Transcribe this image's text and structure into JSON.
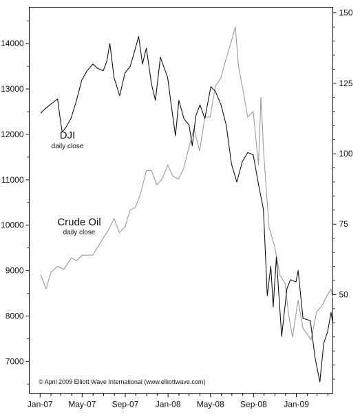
{
  "chart_data": {
    "type": "line",
    "title": "",
    "copyright": "© April 2009 Elliott Wave International (www.elliottwave.com)",
    "x_ticks": [
      "Jan-07",
      "May-07",
      "Sep-07",
      "Jan-08",
      "May-08",
      "Sep-08",
      "Jan-09"
    ],
    "x_ticks_dates": [
      "2007-01-01",
      "2007-05-01",
      "2007-09-01",
      "2008-01-01",
      "2008-05-01",
      "2008-09-01",
      "2009-01-01"
    ],
    "x_range": [
      "2006-12-01",
      "2009-04-15"
    ],
    "y_left": {
      "min": 6300,
      "max": 14800,
      "ticks": [
        7000,
        8000,
        9000,
        10000,
        11000,
        12000,
        13000,
        14000
      ]
    },
    "y_right": {
      "min": 15,
      "max": 152,
      "ticks": [
        50,
        75,
        100,
        125,
        150
      ]
    },
    "grid": false,
    "series": [
      {
        "name": "DJI",
        "subtitle": "daily close",
        "axis": "left",
        "color": "#111111",
        "points": [
          [
            "2007-01-03",
            12470
          ],
          [
            "2007-01-15",
            12560
          ],
          [
            "2007-02-01",
            12670
          ],
          [
            "2007-02-20",
            12780
          ],
          [
            "2007-02-28",
            12300
          ],
          [
            "2007-03-05",
            12050
          ],
          [
            "2007-03-15",
            12150
          ],
          [
            "2007-03-30",
            12350
          ],
          [
            "2007-04-15",
            12750
          ],
          [
            "2007-04-30",
            13200
          ],
          [
            "2007-05-15",
            13400
          ],
          [
            "2007-05-31",
            13550
          ],
          [
            "2007-06-15",
            13450
          ],
          [
            "2007-06-30",
            13400
          ],
          [
            "2007-07-10",
            13600
          ],
          [
            "2007-07-19",
            14000
          ],
          [
            "2007-07-31",
            13250
          ],
          [
            "2007-08-16",
            12850
          ],
          [
            "2007-08-31",
            13350
          ],
          [
            "2007-09-15",
            13500
          ],
          [
            "2007-09-30",
            13900
          ],
          [
            "2007-10-09",
            14160
          ],
          [
            "2007-10-20",
            13550
          ],
          [
            "2007-10-31",
            13900
          ],
          [
            "2007-11-15",
            13100
          ],
          [
            "2007-11-26",
            12750
          ],
          [
            "2007-12-10",
            13700
          ],
          [
            "2007-12-31",
            13250
          ],
          [
            "2008-01-10",
            12650
          ],
          [
            "2008-01-22",
            11970
          ],
          [
            "2008-02-01",
            12750
          ],
          [
            "2008-02-15",
            12350
          ],
          [
            "2008-03-01",
            12200
          ],
          [
            "2008-03-10",
            11750
          ],
          [
            "2008-03-20",
            12400
          ],
          [
            "2008-04-01",
            12650
          ],
          [
            "2008-04-15",
            12350
          ],
          [
            "2008-05-02",
            13050
          ],
          [
            "2008-05-15",
            12950
          ],
          [
            "2008-05-31",
            12650
          ],
          [
            "2008-06-15",
            12200
          ],
          [
            "2008-06-30",
            11350
          ],
          [
            "2008-07-15",
            10950
          ],
          [
            "2008-07-31",
            11400
          ],
          [
            "2008-08-15",
            11600
          ],
          [
            "2008-08-31",
            11550
          ],
          [
            "2008-09-15",
            10900
          ],
          [
            "2008-09-29",
            10350
          ],
          [
            "2008-10-10",
            8450
          ],
          [
            "2008-10-20",
            9100
          ],
          [
            "2008-10-27",
            8200
          ],
          [
            "2008-11-05",
            9300
          ],
          [
            "2008-11-20",
            7550
          ],
          [
            "2008-12-05",
            8600
          ],
          [
            "2008-12-15",
            8800
          ],
          [
            "2008-12-31",
            8750
          ],
          [
            "2009-01-06",
            9000
          ],
          [
            "2009-01-20",
            7950
          ],
          [
            "2009-02-10",
            7900
          ],
          [
            "2009-02-23",
            7100
          ],
          [
            "2009-03-09",
            6550
          ],
          [
            "2009-03-20",
            7400
          ],
          [
            "2009-03-31",
            7650
          ],
          [
            "2009-04-10",
            8080
          ],
          [
            "2009-04-15",
            7850
          ]
        ]
      },
      {
        "name": "Crude Oil",
        "subtitle": "daily close",
        "axis": "right",
        "color": "#9a9a9a",
        "points": [
          [
            "2007-01-03",
            57
          ],
          [
            "2007-01-18",
            52
          ],
          [
            "2007-02-01",
            58
          ],
          [
            "2007-02-20",
            60
          ],
          [
            "2007-03-10",
            59
          ],
          [
            "2007-03-31",
            63
          ],
          [
            "2007-04-15",
            62
          ],
          [
            "2007-05-01",
            64
          ],
          [
            "2007-05-31",
            64
          ],
          [
            "2007-06-15",
            67
          ],
          [
            "2007-06-30",
            70
          ],
          [
            "2007-07-15",
            73
          ],
          [
            "2007-07-31",
            77
          ],
          [
            "2007-08-15",
            72
          ],
          [
            "2007-08-31",
            74
          ],
          [
            "2007-09-15",
            80
          ],
          [
            "2007-09-30",
            81
          ],
          [
            "2007-10-15",
            86
          ],
          [
            "2007-10-31",
            94
          ],
          [
            "2007-11-15",
            94
          ],
          [
            "2007-11-30",
            89
          ],
          [
            "2007-12-15",
            91
          ],
          [
            "2007-12-31",
            96
          ],
          [
            "2008-01-15",
            92
          ],
          [
            "2008-01-31",
            91
          ],
          [
            "2008-02-15",
            95
          ],
          [
            "2008-02-29",
            102
          ],
          [
            "2008-03-15",
            109
          ],
          [
            "2008-03-31",
            101
          ],
          [
            "2008-04-15",
            113
          ],
          [
            "2008-04-30",
            113
          ],
          [
            "2008-05-15",
            124
          ],
          [
            "2008-05-31",
            127
          ],
          [
            "2008-06-15",
            134
          ],
          [
            "2008-06-30",
            140
          ],
          [
            "2008-07-11",
            145
          ],
          [
            "2008-07-20",
            131
          ],
          [
            "2008-07-31",
            124
          ],
          [
            "2008-08-15",
            113
          ],
          [
            "2008-08-31",
            115
          ],
          [
            "2008-09-15",
            96
          ],
          [
            "2008-09-22",
            120
          ],
          [
            "2008-09-30",
            100
          ],
          [
            "2008-10-15",
            74
          ],
          [
            "2008-10-31",
            67
          ],
          [
            "2008-11-15",
            57
          ],
          [
            "2008-11-30",
            54
          ],
          [
            "2008-12-10",
            43
          ],
          [
            "2008-12-21",
            35
          ],
          [
            "2009-01-06",
            48
          ],
          [
            "2009-01-20",
            38
          ],
          [
            "2009-02-12",
            34
          ],
          [
            "2009-02-28",
            44
          ],
          [
            "2009-03-15",
            46
          ],
          [
            "2009-03-31",
            50
          ],
          [
            "2009-04-10",
            52
          ],
          [
            "2009-04-15",
            49
          ]
        ]
      }
    ]
  }
}
